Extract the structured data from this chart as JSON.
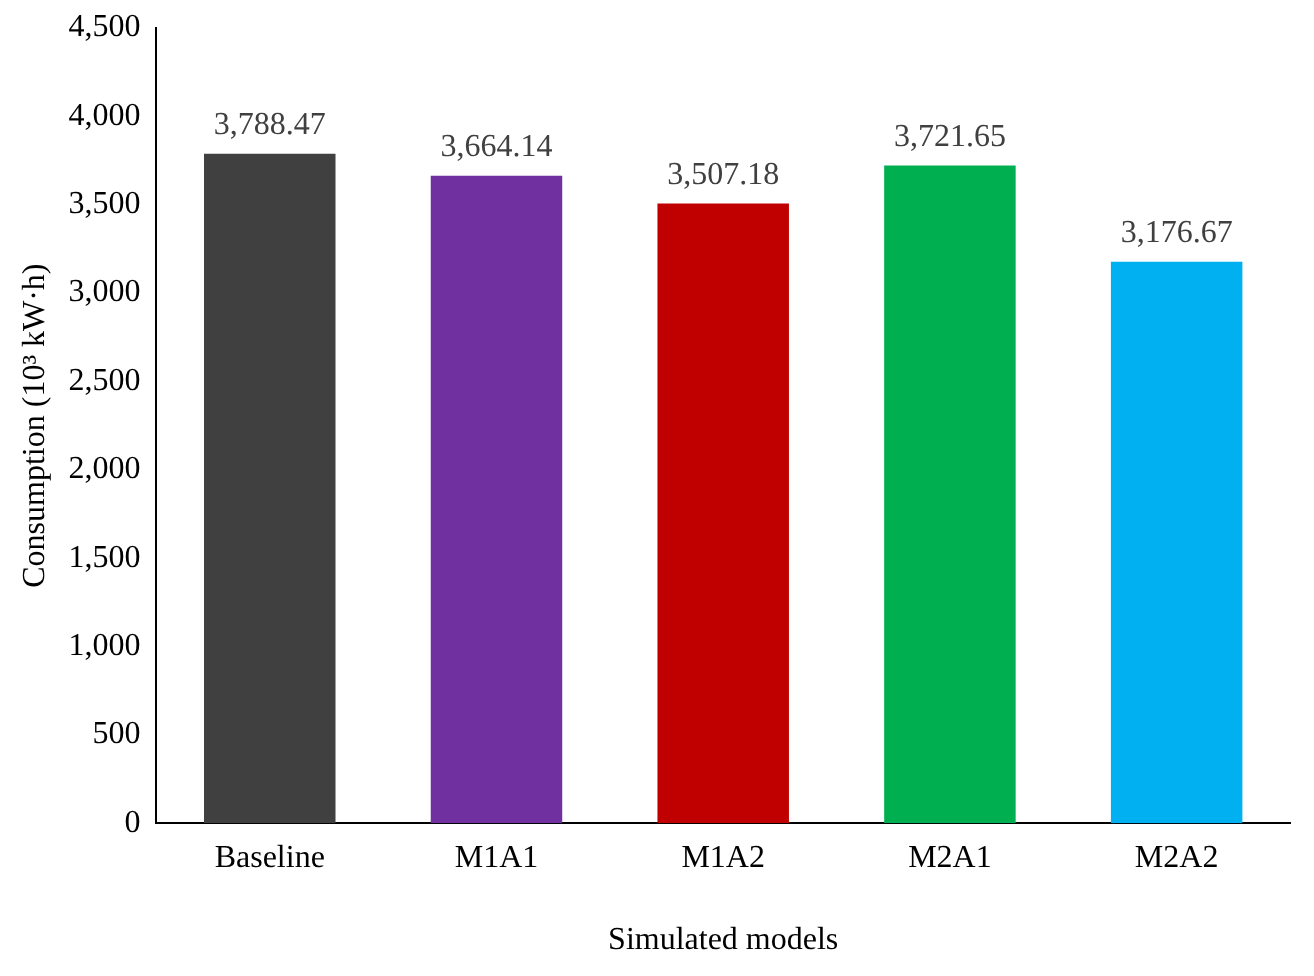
{
  "chart_data": {
    "type": "bar",
    "xlabel": "Simulated models",
    "ylabel": "Consumption (10³ kW·h)",
    "categories": [
      "Baseline",
      "M1A1",
      "M1A2",
      "M2A1",
      "M2A2"
    ],
    "values": [
      3788.47,
      3664.14,
      3507.18,
      3721.65,
      3176.67
    ],
    "colors": [
      "#404040",
      "#7030a0",
      "#c00000",
      "#00b050",
      "#00b0f0"
    ],
    "value_labels": [
      "3,788.47",
      "3,664.14",
      "3,507.18",
      "3,721.65",
      "3,176.67"
    ],
    "ylim": [
      0,
      4500
    ],
    "yticks": [
      {
        "value": 0,
        "label": "0"
      },
      {
        "value": 500,
        "label": "500"
      },
      {
        "value": 1000,
        "label": "1,000"
      },
      {
        "value": 1500,
        "label": "1,500"
      },
      {
        "value": 2000,
        "label": "2,000"
      },
      {
        "value": 2500,
        "label": "2,500"
      },
      {
        "value": 3000,
        "label": "3,000"
      },
      {
        "value": 3500,
        "label": "3,500"
      },
      {
        "value": 4000,
        "label": "4,000"
      },
      {
        "value": 4500,
        "label": "4,500"
      }
    ],
    "grid": false,
    "legend": false
  }
}
